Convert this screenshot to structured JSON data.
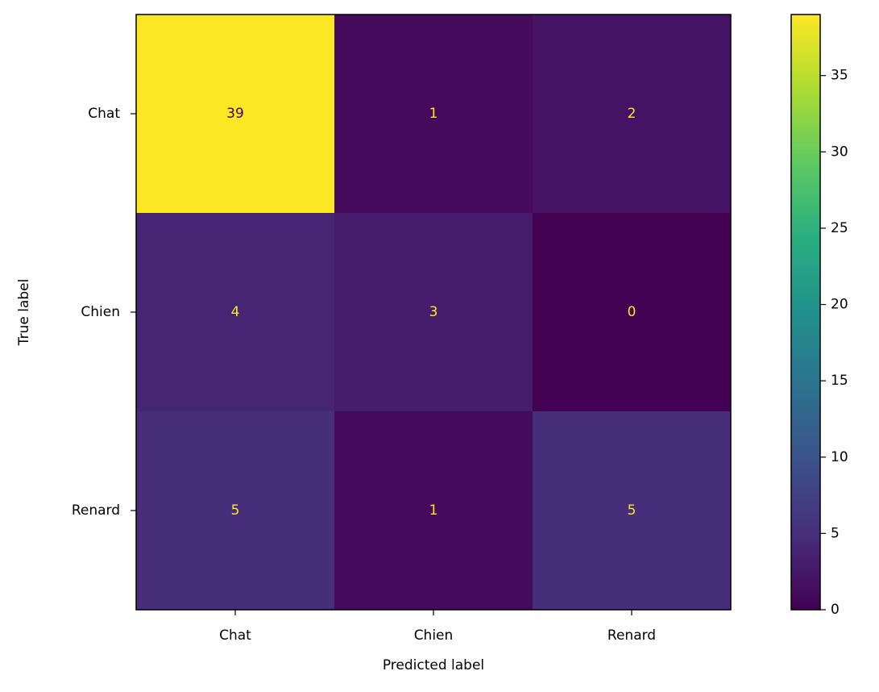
{
  "chart_data": {
    "type": "heatmap",
    "x_categories": [
      "Chat",
      "Chien",
      "Renard"
    ],
    "y_categories": [
      "Chat",
      "Chien",
      "Renard"
    ],
    "values": [
      [
        39,
        1,
        2
      ],
      [
        4,
        3,
        0
      ],
      [
        5,
        1,
        5
      ]
    ],
    "xlabel": "Predicted label",
    "ylabel": "True label",
    "colormap": "viridis",
    "zlim": [
      0,
      39
    ],
    "zticks": [
      0,
      5,
      10,
      15,
      20,
      25,
      30,
      35
    ]
  }
}
